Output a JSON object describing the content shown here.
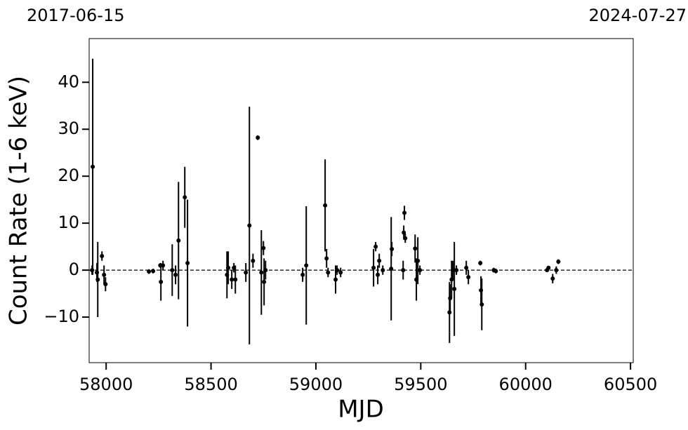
{
  "chart_data": {
    "type": "scatter",
    "xlabel": "MJD",
    "ylabel": "Count Rate (1-6 keV)",
    "annotations": [
      "2017-06-15",
      "2024-07-27"
    ],
    "color": "#000000",
    "hline": 0,
    "xlim": [
      57919,
      60513
    ],
    "ylim": [
      -19.7,
      49.3
    ],
    "xticks": [
      58000,
      58500,
      59000,
      59500,
      60000,
      60500
    ],
    "yticks": [
      {
        "value": -10,
        "label": "−10"
      },
      0,
      10,
      20,
      30,
      40
    ],
    "x": [
      57936,
      57933,
      57956,
      57960,
      57980,
      57990,
      57997,
      58204,
      58224,
      58258,
      58261,
      58271,
      58315,
      58331,
      58345,
      58375,
      58388,
      58576,
      58582,
      58599,
      58609,
      58616,
      58666,
      58683,
      58700,
      58723,
      58740,
      58750,
      58753,
      58760,
      58937,
      58954,
      59044,
      59051,
      59058,
      59094,
      59101,
      59118,
      59275,
      59285,
      59295,
      59302,
      59319,
      59359,
      59362,
      59416,
      59419,
      59422,
      59426,
      59473,
      59479,
      59486,
      59496,
      59637,
      59640,
      59647,
      59653,
      59660,
      59670,
      59717,
      59727,
      59784,
      59787,
      59791,
      59848,
      59858,
      60102,
      60109,
      60129,
      60146,
      60156
    ],
    "values": [
      22,
      0,
      -0.5,
      -2,
      3,
      -1,
      -3,
      -0.3,
      -0.2,
      1,
      -2.5,
      1,
      0,
      -1,
      6.3,
      15.5,
      1.5,
      -1,
      0.5,
      -2,
      0.5,
      -2,
      -0.5,
      9.5,
      2,
      28.2,
      -0.5,
      4.7,
      -2.5,
      0,
      -1,
      1,
      13.8,
      2.5,
      -0.5,
      -2,
      0,
      -0.5,
      0.5,
      5,
      -1,
      2,
      0,
      0.3,
      4.5,
      0,
      8,
      12.2,
      6.8,
      4.6,
      -2,
      2,
      0,
      -9,
      -6,
      -2,
      0,
      -4,
      0,
      0.5,
      -1.5,
      1.5,
      -4.3,
      -7.3,
      0,
      -0.2,
      0,
      0.5,
      -1.8,
      0,
      1.8
    ],
    "errors": [
      23,
      1,
      2,
      8,
      1,
      2,
      1.5,
      0.5,
      0.5,
      0.5,
      4,
      1,
      5.5,
      2,
      12.5,
      6.5,
      13.5,
      5,
      3.5,
      2,
      1,
      3,
      2,
      25.3,
      1.5,
      0.5,
      9,
      1.5,
      5,
      2,
      1.5,
      12.6,
      9.8,
      2,
      1,
      3,
      1,
      1,
      4,
      1,
      2,
      1.5,
      1,
      11,
      1.5,
      2,
      1.5,
      1.5,
      1,
      3,
      4.5,
      5,
      1,
      6.5,
      3,
      4,
      2,
      10,
      1,
      1.5,
      1.5,
      0.5,
      3,
      5.5,
      0.5,
      0.5,
      0.3,
      0.3,
      1,
      0.8,
      0.5
    ]
  }
}
